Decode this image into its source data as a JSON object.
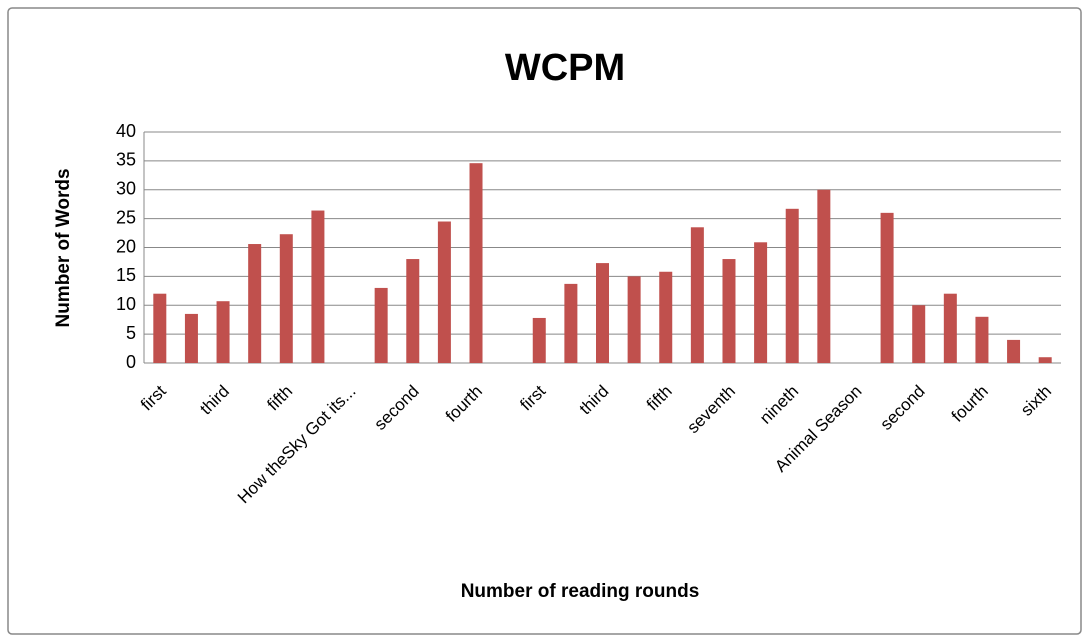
{
  "chart_data": {
    "type": "bar",
    "title": "WCPM",
    "x_label": "Number of reading rounds",
    "y_label": "Number of Words",
    "categories": [
      "first",
      null,
      "third",
      null,
      "fifth",
      null,
      "How theSky Got its...",
      null,
      "second",
      null,
      "fourth",
      null,
      "first",
      null,
      "third",
      null,
      "fifth",
      null,
      "seventh",
      null,
      "nineth",
      null,
      "Animal Season",
      null,
      "second",
      null,
      "fourth",
      null,
      "sixth"
    ],
    "values": [
      12,
      8.5,
      10.7,
      20.6,
      22.3,
      26.4,
      null,
      13,
      18,
      24.5,
      34.6,
      null,
      7.8,
      13.7,
      17.3,
      15,
      15.8,
      23.5,
      18,
      20.9,
      26.7,
      30,
      null,
      26,
      10,
      12,
      8,
      4,
      1
    ],
    "color": "#c0504d",
    "ylim": [
      0,
      40
    ],
    "yticks": [
      0,
      5,
      10,
      15,
      20,
      25,
      30,
      35,
      40
    ],
    "grid": true
  }
}
